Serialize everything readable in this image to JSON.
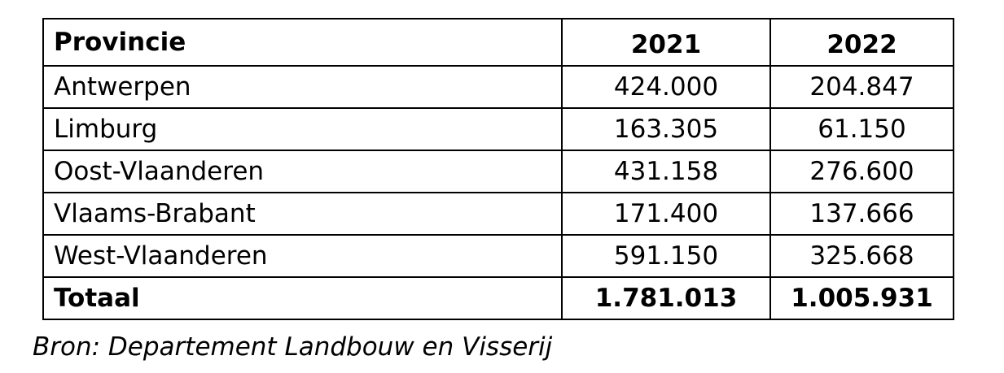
{
  "table": {
    "headers": [
      "Provincie",
      "2021",
      "2022"
    ],
    "rows": [
      [
        "Antwerpen",
        "424.000",
        "204.847"
      ],
      [
        "Limburg",
        "163.305",
        "61.150"
      ],
      [
        "Oost-Vlaanderen",
        "431.158",
        "276.600"
      ],
      [
        "Vlaams-Brabant",
        "171.400",
        "137.666"
      ],
      [
        "West-Vlaanderen",
        "591.150",
        "325.668"
      ]
    ],
    "total": [
      "Totaal",
      "1.781.013",
      "1.005.931"
    ]
  },
  "source": "Bron: Departement Landbouw en Visserij"
}
